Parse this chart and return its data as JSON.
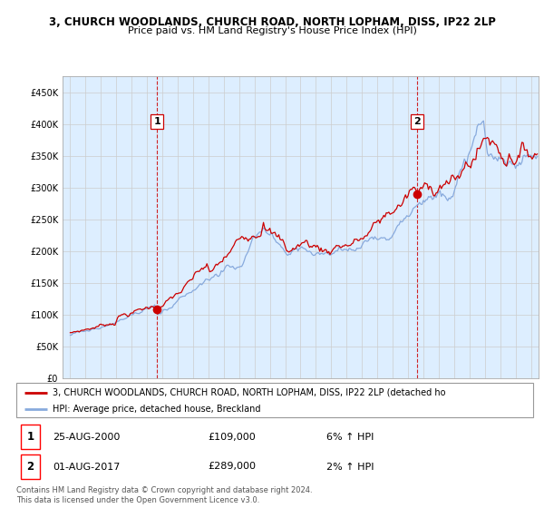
{
  "title": "3, CHURCH WOODLANDS, CHURCH ROAD, NORTH LOPHAM, DISS, IP22 2LP",
  "subtitle": "Price paid vs. HM Land Registry's House Price Index (HPI)",
  "legend_line1": "3, CHURCH WOODLANDS, CHURCH ROAD, NORTH LOPHAM, DISS, IP22 2LP (detached ho",
  "legend_line2": "HPI: Average price, detached house, Breckland",
  "purchase1_date": "25-AUG-2000",
  "purchase1_price": "£109,000",
  "purchase1_hpi": "6% ↑ HPI",
  "purchase2_date": "01-AUG-2017",
  "purchase2_price": "£289,000",
  "purchase2_hpi": "2% ↑ HPI",
  "footnote": "Contains HM Land Registry data © Crown copyright and database right 2024.\nThis data is licensed under the Open Government Licence v3.0.",
  "property_color": "#cc0000",
  "hpi_color": "#88aadd",
  "dashed_color": "#cc0000",
  "fill_color": "#ddeeff",
  "background_color": "#ffffff",
  "grid_color": "#cccccc",
  "ylim": [
    0,
    475000
  ],
  "yticks": [
    0,
    50000,
    100000,
    150000,
    200000,
    250000,
    300000,
    350000,
    400000,
    450000
  ],
  "purchase1_x": 2000.65,
  "purchase1_y": 109000,
  "purchase2_x": 2017.58,
  "purchase2_y": 289000,
  "xmin": 1994.5,
  "xmax": 2025.5
}
